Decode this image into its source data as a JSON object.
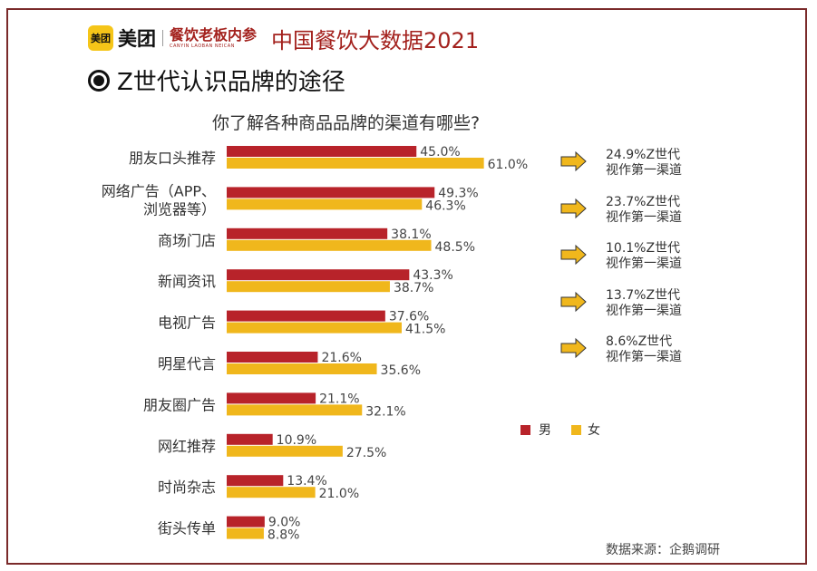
{
  "header": {
    "logo_icon_text": "美团",
    "logo_text": "美团",
    "sub_logo": "餐饮老板内参",
    "main_title": "中国餐饮大数据2021"
  },
  "section_title": "Z世代认识品牌的途径",
  "source": "数据来源：企鹅调研",
  "colors": {
    "male": "#b8232a",
    "female": "#f0b71c",
    "arrow": "#f0b71c",
    "frame": "#7a2a2a"
  },
  "chart_data": {
    "type": "bar",
    "orientation": "horizontal",
    "title": "你了解各种商品品牌的渠道有哪些?",
    "categories": [
      "朋友口头推荐",
      "网络广告（APP、浏览器等）",
      "商场门店",
      "新闻资讯",
      "电视广告",
      "明星代言",
      "朋友圈广告",
      "网红推荐",
      "时尚杂志",
      "街头传单"
    ],
    "category_lines": [
      [
        "朋友口头推荐"
      ],
      [
        "网络广告（APP、",
        "浏览器等）"
      ],
      [
        "商场门店"
      ],
      [
        "新闻资讯"
      ],
      [
        "电视广告"
      ],
      [
        "明星代言"
      ],
      [
        "朋友圈广告"
      ],
      [
        "网红推荐"
      ],
      [
        "时尚杂志"
      ],
      [
        "街头传单"
      ]
    ],
    "series": [
      {
        "name": "男",
        "values": [
          45.0,
          49.3,
          38.1,
          43.3,
          37.6,
          21.6,
          21.1,
          10.9,
          13.4,
          9.0
        ]
      },
      {
        "name": "女",
        "values": [
          61.0,
          46.3,
          48.5,
          38.7,
          41.5,
          35.6,
          32.1,
          27.5,
          21.0,
          8.8
        ]
      }
    ],
    "value_labels": {
      "男": [
        "45.0%",
        "49.3%",
        "38.1%",
        "43.3%",
        "37.6%",
        "21.6%",
        "21.1%",
        "10.9%",
        "13.4%",
        "9.0%"
      ],
      "女": [
        "61.0%",
        "46.3%",
        "48.5%",
        "38.7%",
        "41.5%",
        "35.6%",
        "32.1%",
        "27.5%",
        "21.0%",
        "8.8%"
      ]
    },
    "legend_position": "right",
    "annotations": [
      {
        "line1": "24.9%Z世代",
        "line2": "视作第一渠道"
      },
      {
        "line1": "23.7%Z世代",
        "line2": "视作第一渠道"
      },
      {
        "line1": "10.1%Z世代",
        "line2": "视作第一渠道"
      },
      {
        "line1": "13.7%Z世代",
        "line2": "视作第一渠道"
      },
      {
        "line1": "8.6%Z世代",
        "line2": "视作第一渠道"
      }
    ]
  }
}
